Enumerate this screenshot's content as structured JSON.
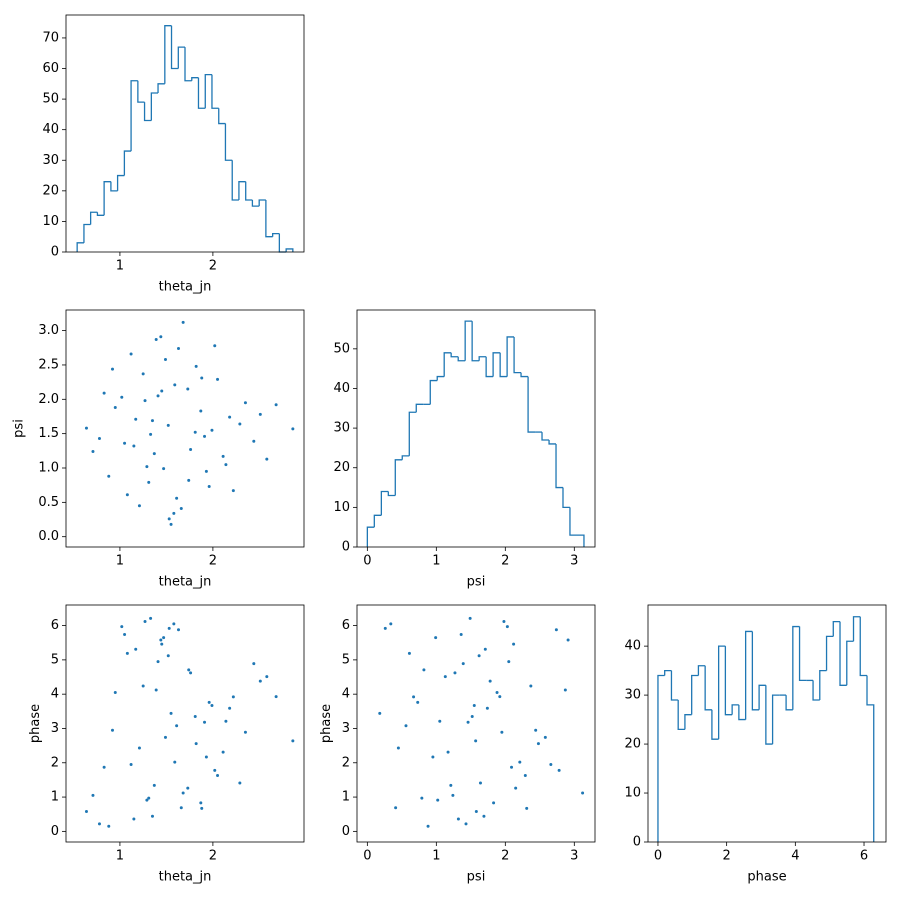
{
  "chart_data": [
    {
      "type": "histogram",
      "xlabel": "theta_jn",
      "color": "#1f77b4",
      "bins": [
        0.54,
        0.613,
        0.685,
        0.758,
        0.83,
        0.903,
        0.975,
        1.048,
        1.12,
        1.193,
        1.265,
        1.338,
        1.41,
        1.483,
        1.555,
        1.628,
        1.7,
        1.773,
        1.845,
        1.918,
        1.99,
        2.063,
        2.135,
        2.208,
        2.28,
        2.353,
        2.425,
        2.498,
        2.57,
        2.643,
        2.715,
        2.788,
        2.86
      ],
      "values": [
        3,
        9,
        13,
        12,
        23,
        20,
        25,
        33,
        56,
        49,
        43,
        52,
        55,
        74,
        60,
        67,
        56,
        57,
        47,
        58,
        47,
        42,
        30,
        17,
        23,
        17,
        15,
        17,
        5,
        6,
        0,
        1
      ],
      "xlim": [
        0.42,
        2.98
      ],
      "ylim": [
        0,
        77.5
      ],
      "xticks": [
        1,
        2
      ],
      "yticks": [
        0,
        10,
        20,
        30,
        40,
        50,
        60,
        70
      ]
    },
    {
      "type": "scatter",
      "xlabel": "theta_jn",
      "ylabel": "psi",
      "color": "#1f77b4",
      "x": [
        1.52,
        1.21,
        1.88,
        0.95,
        2.14,
        1.63,
        1.37,
        1.74,
        2.35,
        0.78,
        1.45,
        1.99,
        1.12,
        1.58,
        2.51,
        1.29,
        1.82,
        1.05,
        2.22,
        1.68,
        0.64,
        1.41,
        1.93,
        1.17,
        2.05,
        1.55,
        1.33,
        2.68,
        0.88,
        1.76,
        1.49,
        2.29,
        1.02,
        1.61,
        1.87,
        1.25,
        2.11,
        1.44,
        0.71,
        1.96,
        1.35,
        2.44,
        1.59,
        1.08,
        1.81,
        2.02,
        1.27,
        1.66,
        2.58,
        0.92,
        1.47,
        1.73,
        2.18,
        1.15,
        1.39,
        2.86,
        1.53,
        0.83,
        1.91,
        1.31
      ],
      "y": [
        1.62,
        0.45,
        2.31,
        1.88,
        1.05,
        2.74,
        1.21,
        0.82,
        1.95,
        1.43,
        2.12,
        1.55,
        2.66,
        0.34,
        1.78,
        1.02,
        2.48,
        1.36,
        0.67,
        3.12,
        1.58,
        2.05,
        0.95,
        1.71,
        2.29,
        0.18,
        1.49,
        1.92,
        0.88,
        1.27,
        2.58,
        1.64,
        2.03,
        0.56,
        1.83,
        2.37,
        1.17,
        2.91,
        1.24,
        0.73,
        1.69,
        1.39,
        2.21,
        0.61,
        1.52,
        2.78,
        1.98,
        0.41,
        1.13,
        2.44,
        0.99,
        2.15,
        1.74,
        1.32,
        2.87,
        1.57,
        0.26,
        2.09,
        1.46,
        0.79
      ],
      "xlim": [
        0.42,
        2.98
      ],
      "ylim": [
        -0.15,
        3.3
      ],
      "xticks": [
        1,
        2
      ],
      "yticks": [
        {
          "value": 0,
          "label": "0.0"
        },
        0.5,
        {
          "value": 1,
          "label": "1.0"
        },
        1.5,
        {
          "value": 2,
          "label": "2.0"
        },
        2.5,
        {
          "value": 3,
          "label": "3.0"
        }
      ]
    },
    {
      "type": "histogram",
      "xlabel": "psi",
      "color": "#1f77b4",
      "bins": [
        0,
        0.101,
        0.203,
        0.304,
        0.405,
        0.506,
        0.608,
        0.709,
        0.81,
        0.912,
        1.013,
        1.114,
        1.215,
        1.317,
        1.418,
        1.519,
        1.621,
        1.722,
        1.823,
        1.925,
        2.026,
        2.127,
        2.228,
        2.33,
        2.431,
        2.532,
        2.634,
        2.735,
        2.836,
        2.937,
        3.039,
        3.14
      ],
      "values": [
        5,
        8,
        14,
        13,
        22,
        23,
        34,
        36,
        36,
        42,
        43,
        49,
        48,
        47,
        57,
        47,
        48,
        43,
        49,
        43,
        53,
        44,
        43,
        29,
        29,
        27,
        26,
        15,
        10,
        3,
        3
      ],
      "xlim": [
        -0.15,
        3.3
      ],
      "ylim": [
        0,
        59.8
      ],
      "xticks": [
        0,
        1,
        2,
        3
      ],
      "yticks": [
        0,
        10,
        20,
        30,
        40,
        50
      ]
    },
    {
      "type": "scatter",
      "xlabel": "theta_jn",
      "ylabel": "phase",
      "color": "#1f77b4",
      "x": [
        1.52,
        1.21,
        1.88,
        0.95,
        2.14,
        1.63,
        1.37,
        1.74,
        2.35,
        0.78,
        1.45,
        1.99,
        1.12,
        1.58,
        2.51,
        1.29,
        1.82,
        1.05,
        2.22,
        1.68,
        0.64,
        1.41,
        1.93,
        1.17,
        2.05,
        1.55,
        1.33,
        2.68,
        0.88,
        1.76,
        1.49,
        2.29,
        1.02,
        1.61,
        1.87,
        1.25,
        2.11,
        1.44,
        0.71,
        1.96,
        1.35,
        2.44,
        1.59,
        1.08,
        1.81,
        2.02,
        1.27,
        1.66,
        2.58,
        0.92,
        1.47,
        1.73,
        2.18,
        1.15,
        1.39,
        2.86,
        1.53,
        0.83,
        1.91,
        1.31
      ],
      "y": [
        5.12,
        2.43,
        0.67,
        4.05,
        3.21,
        5.88,
        1.34,
        4.71,
        2.89,
        0.22,
        5.46,
        3.67,
        1.95,
        6.05,
        4.38,
        0.91,
        2.56,
        5.74,
        3.92,
        1.12,
        0.58,
        4.95,
        2.17,
        5.31,
        1.63,
        3.44,
        6.21,
        3.93,
        0.15,
        4.62,
        2.74,
        1.41,
        5.97,
        3.08,
        0.83,
        4.24,
        2.31,
        5.58,
        1.05,
        3.76,
        0.44,
        4.89,
        2.02,
        5.19,
        3.35,
        1.78,
        6.12,
        0.69,
        4.51,
        2.95,
        5.65,
        1.26,
        3.59,
        0.36,
        4.12,
        2.64,
        5.92,
        1.87,
        3.18,
        0.97
      ],
      "xlim": [
        0.42,
        2.98
      ],
      "ylim": [
        -0.31,
        6.6
      ],
      "xticks": [
        1,
        2
      ],
      "yticks": [
        0,
        1,
        2,
        3,
        4,
        5,
        6
      ]
    },
    {
      "type": "scatter",
      "xlabel": "psi",
      "ylabel": "phase",
      "color": "#1f77b4",
      "x": [
        1.62,
        0.45,
        2.31,
        1.88,
        1.05,
        2.74,
        1.21,
        0.82,
        1.95,
        1.43,
        2.12,
        1.55,
        2.66,
        0.34,
        1.78,
        1.02,
        2.48,
        1.36,
        0.67,
        3.12,
        1.58,
        2.05,
        0.95,
        1.71,
        2.29,
        0.18,
        1.49,
        1.92,
        0.88,
        1.27,
        2.58,
        1.64,
        2.03,
        0.56,
        1.83,
        2.37,
        1.17,
        2.91,
        1.24,
        0.73,
        1.69,
        1.39,
        2.21,
        0.61,
        1.52,
        2.78,
        1.98,
        0.41,
        1.13,
        2.44,
        0.99,
        2.15,
        1.74,
        1.32,
        2.87,
        1.57,
        0.26,
        2.09,
        1.46,
        0.79
      ],
      "y": [
        5.12,
        2.43,
        0.67,
        4.05,
        3.21,
        5.88,
        1.34,
        4.71,
        2.89,
        0.22,
        5.46,
        3.67,
        1.95,
        6.05,
        4.38,
        0.91,
        2.56,
        5.74,
        3.92,
        1.12,
        0.58,
        4.95,
        2.17,
        5.31,
        1.63,
        3.44,
        6.21,
        3.93,
        0.15,
        4.62,
        2.74,
        1.41,
        5.97,
        3.08,
        0.83,
        4.24,
        2.31,
        5.58,
        1.05,
        3.76,
        0.44,
        4.89,
        2.02,
        5.19,
        3.35,
        1.78,
        6.12,
        0.69,
        4.51,
        2.95,
        5.65,
        1.26,
        3.59,
        0.36,
        4.12,
        2.64,
        5.92,
        1.87,
        3.18,
        0.97
      ],
      "xlim": [
        -0.15,
        3.3
      ],
      "ylim": [
        -0.31,
        6.6
      ],
      "xticks": [
        0,
        1,
        2,
        3
      ],
      "yticks": [
        0,
        1,
        2,
        3,
        4,
        5,
        6
      ]
    },
    {
      "type": "histogram",
      "xlabel": "phase",
      "color": "#1f77b4",
      "bins": [
        0,
        0.196,
        0.393,
        0.589,
        0.785,
        0.982,
        1.178,
        1.374,
        1.571,
        1.767,
        1.963,
        2.16,
        2.356,
        2.553,
        2.749,
        2.945,
        3.142,
        3.338,
        3.534,
        3.731,
        3.927,
        4.123,
        4.32,
        4.516,
        4.712,
        4.909,
        5.105,
        5.301,
        5.498,
        5.694,
        5.89,
        6.087,
        6.283
      ],
      "values": [
        34,
        35,
        29,
        23,
        26,
        34,
        36,
        27,
        21,
        40,
        26,
        28,
        25,
        43,
        27,
        32,
        20,
        30,
        30,
        27,
        44,
        33,
        33,
        29,
        35,
        42,
        45,
        32,
        41,
        46,
        34,
        28
      ],
      "xlim": [
        -0.29,
        6.64
      ],
      "ylim": [
        0,
        48.4
      ],
      "xticks": [
        0,
        2,
        4,
        6
      ],
      "yticks": [
        0,
        10,
        20,
        30,
        40
      ]
    }
  ]
}
